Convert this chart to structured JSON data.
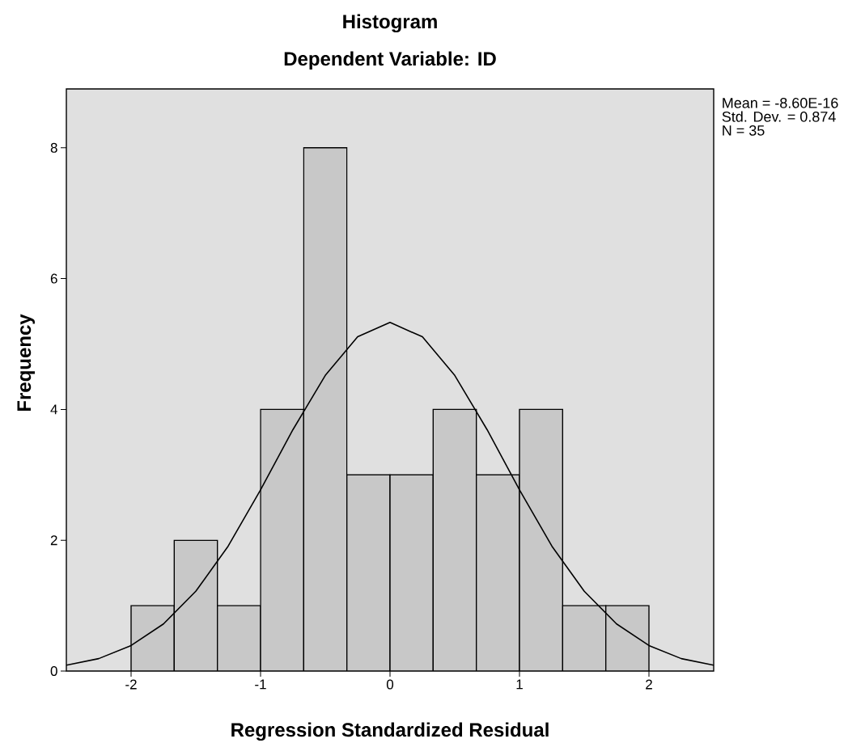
{
  "chart_data": {
    "type": "histogram",
    "title": "Histogram",
    "subtitle": "Dependent Variable: ID",
    "xlabel": "Regression Standardized Residual",
    "ylabel": "Frequency",
    "bins": [
      -2,
      -1.6667,
      -1.3333,
      -1,
      -0.6667,
      -0.3333,
      0,
      0.3333,
      0.6667,
      1,
      1.3333,
      1.6667,
      2
    ],
    "values": [
      1,
      2,
      1,
      4,
      8,
      3,
      3,
      4,
      3,
      4,
      1,
      1
    ],
    "color": "#c8c8c8",
    "series": [
      {
        "type": "line",
        "color": "#000000",
        "x": [
          -2.5,
          -2.25,
          -2,
          -1.75,
          -1.5,
          -1.25,
          -1,
          -0.75,
          -0.5,
          -0.25,
          0,
          0.25,
          0.5,
          0.75,
          1,
          1.25,
          1.5,
          1.75,
          2,
          2.25,
          2.5
        ],
        "values": [
          0.09,
          0.19,
          0.39,
          0.72,
          1.22,
          1.91,
          2.77,
          3.69,
          4.52,
          5.11,
          5.33,
          5.11,
          4.52,
          3.69,
          2.77,
          1.91,
          1.22,
          0.72,
          0.39,
          0.19,
          0.09
        ]
      }
    ],
    "xlim": [
      -2.5,
      2.5
    ],
    "ylim": [
      0,
      8.9
    ],
    "xticks": [
      -2,
      -1,
      0,
      1,
      2
    ],
    "yticks": [
      0,
      2,
      4,
      6,
      8
    ],
    "grid": false,
    "annotations": [
      "Mean = -8.60E-16",
      "Std. Dev. = 0.874",
      "N = 35"
    ]
  }
}
